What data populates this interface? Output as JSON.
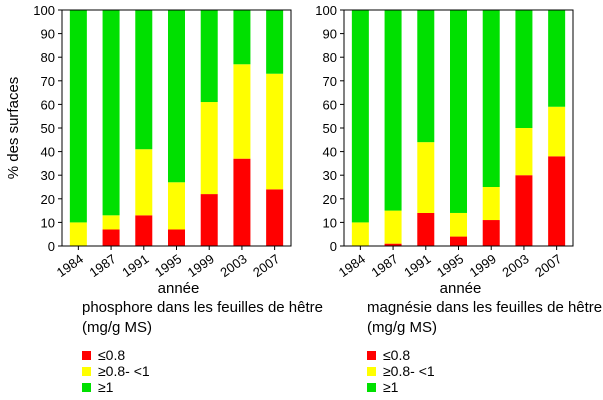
{
  "y_axis_label": "% des surfaces",
  "colors": {
    "lt08": "#ff0000",
    "mid": "#ffff00",
    "ge1": "#00e000"
  },
  "chart_data": [
    {
      "type": "bar",
      "stacked": true,
      "xlabel": "année",
      "ylabel": "% des surfaces",
      "ylim": [
        0,
        100
      ],
      "yticks": [
        0,
        10,
        20,
        30,
        40,
        50,
        60,
        70,
        80,
        90,
        100
      ],
      "categories": [
        "1984",
        "1987",
        "1991",
        "1995",
        "1999",
        "2003",
        "2007"
      ],
      "legend_title_lines": [
        "phosphore dans les feuilles de hêtre",
        "(mg/g MS)"
      ],
      "series": [
        {
          "name": "≤0.8",
          "color": "#ff0000",
          "values": [
            0,
            7,
            13,
            7,
            22,
            37,
            24
          ]
        },
        {
          "name": "≥0.8- <1",
          "color": "#ffff00",
          "values": [
            10,
            6,
            28,
            20,
            39,
            40,
            49
          ]
        },
        {
          "name": "≥1",
          "color": "#00e000",
          "values": [
            90,
            87,
            59,
            73,
            39,
            23,
            27
          ]
        }
      ]
    },
    {
      "type": "bar",
      "stacked": true,
      "xlabel": "année",
      "ylabel": "",
      "ylim": [
        0,
        100
      ],
      "yticks": [
        0,
        10,
        20,
        30,
        40,
        50,
        60,
        70,
        80,
        90,
        100
      ],
      "categories": [
        "1984",
        "1987",
        "1991",
        "1995",
        "1999",
        "2003",
        "2007"
      ],
      "legend_title_lines": [
        "magnésie dans les feuilles de hêtre",
        "(mg/g MS)"
      ],
      "series": [
        {
          "name": "≤0.8",
          "color": "#ff0000",
          "values": [
            0,
            1,
            14,
            4,
            11,
            30,
            38
          ]
        },
        {
          "name": "≥0.8- <1",
          "color": "#ffff00",
          "values": [
            10,
            14,
            30,
            10,
            14,
            20,
            21
          ]
        },
        {
          "name": "≥1",
          "color": "#00e000",
          "values": [
            90,
            85,
            56,
            86,
            75,
            50,
            41
          ]
        }
      ]
    }
  ]
}
